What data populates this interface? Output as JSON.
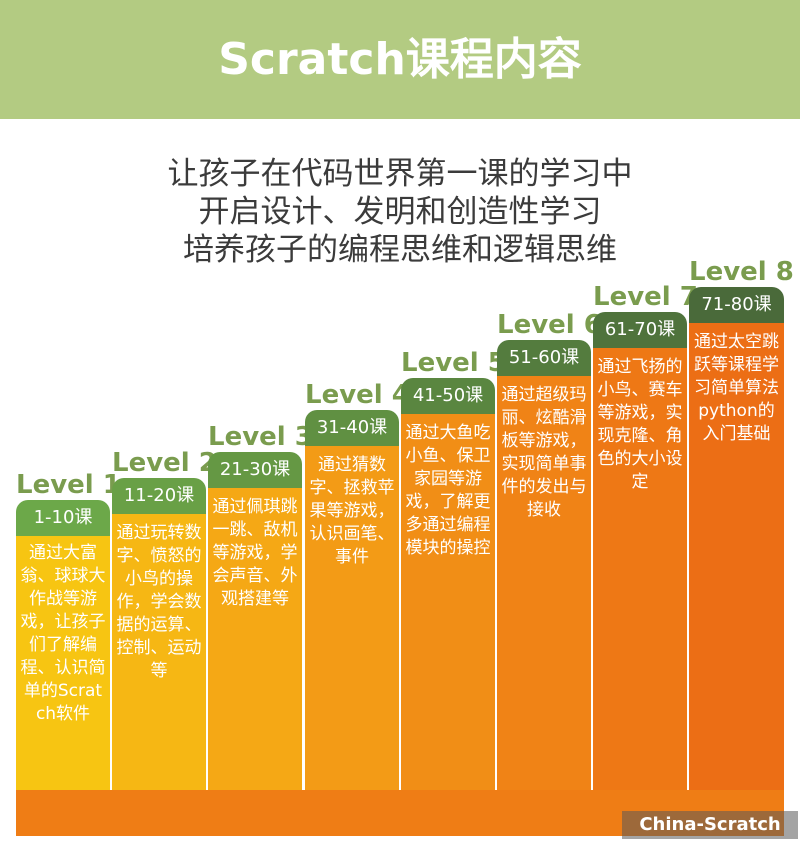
{
  "title": "Scratch课程内容",
  "intro": [
    "让孩子在代码世界第一课的学习中",
    "开启设计、发明和创造性学习",
    "培养孩子的编程思维和逻辑思维"
  ],
  "levels": [
    {
      "level": "Level 1",
      "lessons": "1-10课",
      "desc": "通过大富翁、球球大作战等游戏，让孩子们了解编程、认识简单的Scratch软件",
      "color": "#f7c512",
      "header": "#6ca849"
    },
    {
      "level": "Level 2",
      "lessons": "11-20课",
      "desc": "通过玩转数字、愤怒的小鸟的操作，学会数据的运算、控制、运动等",
      "color": "#f6b714",
      "header": "#69a046"
    },
    {
      "level": "Level 3",
      "lessons": "21-30课",
      "desc": "通过佩琪跳一跳、敌机等游戏，学会声音、外观搭建等",
      "color": "#f5a815",
      "header": "#659844"
    },
    {
      "level": "Level 4",
      "lessons": "31-40课",
      "desc": "通过猜数字、拯救苹果等游戏，认识画笔、事件",
      "color": "#f39b16",
      "header": "#609042"
    },
    {
      "level": "Level 5",
      "lessons": "41-50课",
      "desc": "通过大鱼吃小鱼、保卫家园等游戏，了解更多通过编程模块的操控",
      "color": "#f18e16",
      "header": "#5a8640"
    },
    {
      "level": "Level 6",
      "lessons": "51-60课",
      "desc": "通过超级玛丽、炫酷滑板等游戏，实现简单事件的发出与接收",
      "color": "#f08316",
      "header": "#547c3e"
    },
    {
      "level": "Level 7",
      "lessons": "61-70课",
      "desc": "通过飞扬的小鸟、赛车等游戏，实现克隆、角色的大小设定",
      "color": "#ee7815",
      "header": "#4f733c"
    },
    {
      "level": "Level 8",
      "lessons": "71-80课",
      "desc": "通过太空跳跃等课程学习简单算法python的入门基础",
      "color": "#ec6e15",
      "header": "#4a6a3a"
    }
  ],
  "watermark": "China-Scratch"
}
